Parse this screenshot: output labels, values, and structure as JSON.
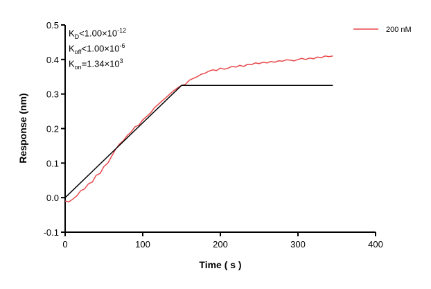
{
  "chart_data": {
    "type": "line",
    "xlabel": "Time ( s )",
    "ylabel": "Response (nm)",
    "xlim": [
      0,
      400
    ],
    "ylim": [
      -0.1,
      0.5
    ],
    "xticks": [
      "0",
      "100",
      "200",
      "300",
      "400"
    ],
    "yticks": [
      "-0.1",
      "0.0",
      "0.1",
      "0.2",
      "0.3",
      "0.4",
      "0.5"
    ],
    "grid": false,
    "legend_position": "top-right",
    "annotations": {
      "kd": {
        "symbol": "K",
        "sub": "D",
        "rel": "<",
        "value": "1.00×10",
        "exp": "-12"
      },
      "koff": {
        "symbol": "K",
        "sub": "off",
        "rel": "<",
        "value": "1.00×10",
        "exp": "-6"
      },
      "kon": {
        "symbol": "K",
        "sub": "on",
        "rel": "=",
        "value": "1.34×10",
        "exp": "3"
      }
    },
    "series": [
      {
        "name": "200 nM",
        "color": "#e8474a",
        "x": [
          0,
          5,
          10,
          15,
          20,
          25,
          30,
          35,
          40,
          45,
          50,
          55,
          60,
          65,
          70,
          75,
          80,
          85,
          90,
          95,
          100,
          105,
          110,
          115,
          120,
          125,
          130,
          135,
          140,
          145,
          150,
          155,
          160,
          165,
          170,
          175,
          180,
          185,
          190,
          195,
          200,
          205,
          210,
          215,
          220,
          225,
          230,
          235,
          240,
          245,
          250,
          255,
          260,
          265,
          270,
          275,
          280,
          285,
          290,
          295,
          300,
          305,
          310,
          315,
          320,
          325,
          330,
          335,
          340,
          345
        ],
        "y": [
          -0.01,
          -0.012,
          -0.004,
          0.005,
          0.02,
          0.025,
          0.04,
          0.045,
          0.065,
          0.07,
          0.09,
          0.1,
          0.12,
          0.14,
          0.155,
          0.165,
          0.18,
          0.19,
          0.205,
          0.21,
          0.225,
          0.235,
          0.245,
          0.26,
          0.27,
          0.28,
          0.29,
          0.3,
          0.31,
          0.318,
          0.325,
          0.328,
          0.34,
          0.345,
          0.35,
          0.357,
          0.36,
          0.366,
          0.37,
          0.368,
          0.375,
          0.372,
          0.375,
          0.38,
          0.378,
          0.383,
          0.38,
          0.386,
          0.385,
          0.39,
          0.388,
          0.392,
          0.39,
          0.394,
          0.392,
          0.396,
          0.395,
          0.399,
          0.398,
          0.396,
          0.4,
          0.403,
          0.4,
          0.404,
          0.402,
          0.407,
          0.405,
          0.41,
          0.408,
          0.41
        ]
      },
      {
        "color": "#000000",
        "x": [
          0,
          150,
          345
        ],
        "y": [
          0,
          0.325,
          0.325
        ]
      }
    ]
  }
}
